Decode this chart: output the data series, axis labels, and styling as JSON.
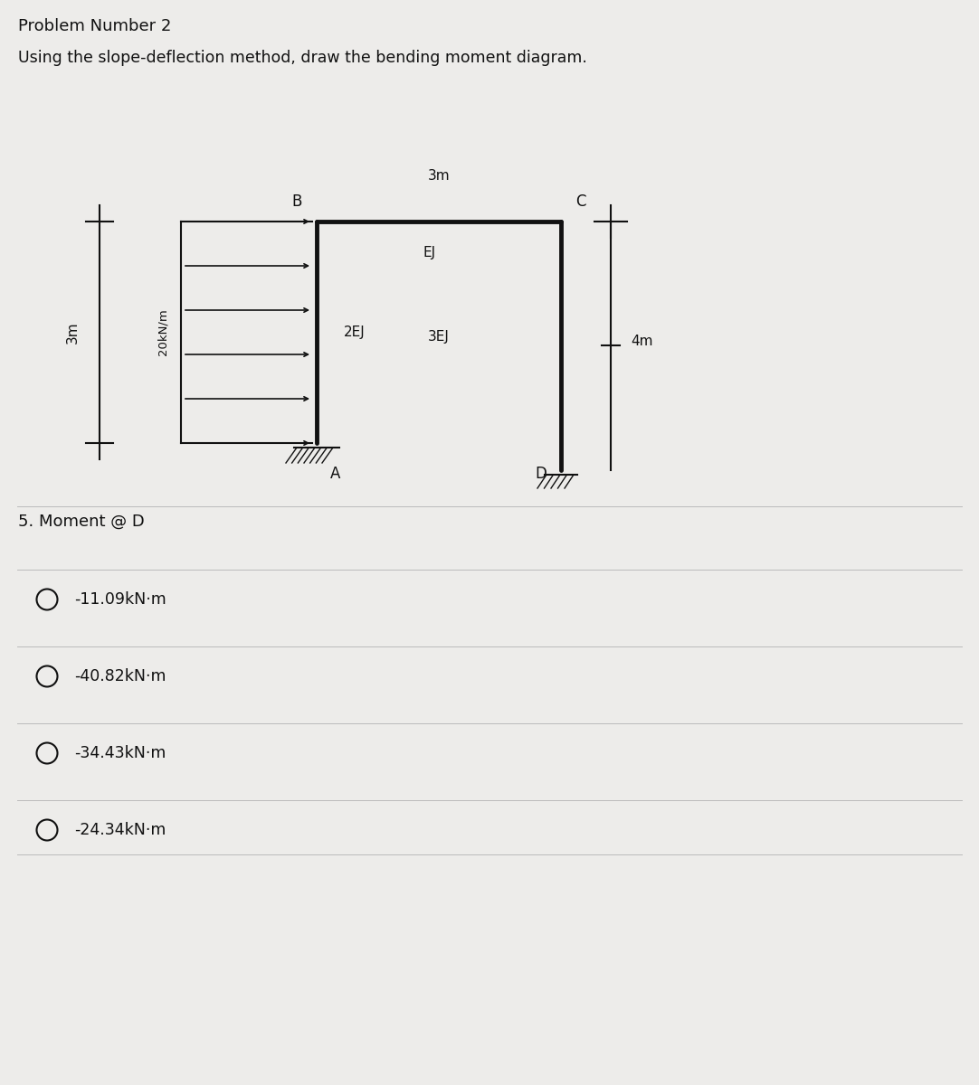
{
  "title1": "Problem Number 2",
  "title2": "Using the slope-deflection method, draw the bending moment diagram.",
  "background_color": "#edecea",
  "label_3m_top": "3m",
  "label_3m_left": "3m",
  "label_4m_right": "4m",
  "label_20kN": "20kN/m",
  "label_2EJ": "2EJ",
  "label_EJ": "EJ",
  "label_3EJ": "3EJ",
  "node_A": "A",
  "node_B": "B",
  "node_C": "C",
  "node_D": "D",
  "question": "5. Moment @ D",
  "options": [
    "-11.09kN·m",
    "-40.82kN·m",
    "-34.43kN·m",
    "-24.34kN·m"
  ]
}
